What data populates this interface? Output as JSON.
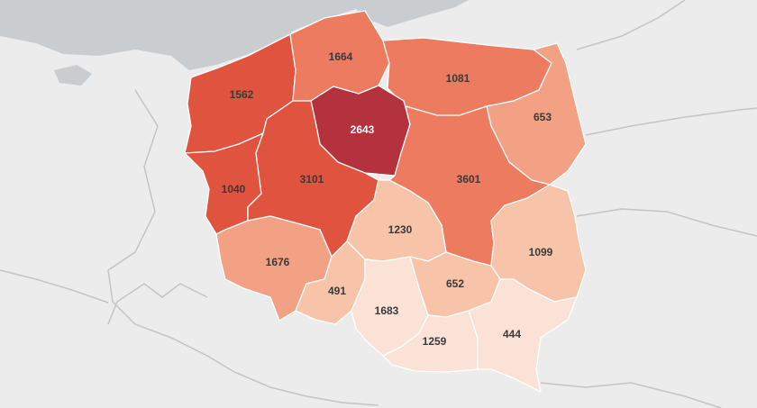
{
  "map": {
    "colors": {
      "land": "#ececec",
      "sea": "#c9cdd0",
      "region_border": "#ffffff",
      "scale": [
        "#fbe2d6",
        "#f7c3a9",
        "#f2a184",
        "#ec7b60",
        "#e0533f",
        "#b3323d"
      ]
    },
    "regions": [
      {
        "id": "zachodniopomorskie",
        "value": 1562,
        "shade": 4
      },
      {
        "id": "pomorskie",
        "value": 1664,
        "shade": 3
      },
      {
        "id": "warminsko-mazurskie",
        "value": 1081,
        "shade": 3
      },
      {
        "id": "podlaskie",
        "value": 653,
        "shade": 2
      },
      {
        "id": "kujawsko-pomorskie",
        "value": 2643,
        "shade": 5
      },
      {
        "id": "lubuskie",
        "value": 1040,
        "shade": 4
      },
      {
        "id": "wielkopolskie",
        "value": 3101,
        "shade": 4
      },
      {
        "id": "mazowieckie",
        "value": 3601,
        "shade": 3
      },
      {
        "id": "lodzkie",
        "value": 1230,
        "shade": 1
      },
      {
        "id": "lubelskie",
        "value": 1099,
        "shade": 1
      },
      {
        "id": "dolnoslaskie",
        "value": 1676,
        "shade": 2
      },
      {
        "id": "opolskie",
        "value": 491,
        "shade": 1
      },
      {
        "id": "swietokrzyskie",
        "value": 652,
        "shade": 1
      },
      {
        "id": "slaskie",
        "value": 1683,
        "shade": 0
      },
      {
        "id": "malopolskie",
        "value": 1259,
        "shade": 0
      },
      {
        "id": "podkarpackie",
        "value": 444,
        "shade": 0
      }
    ]
  }
}
